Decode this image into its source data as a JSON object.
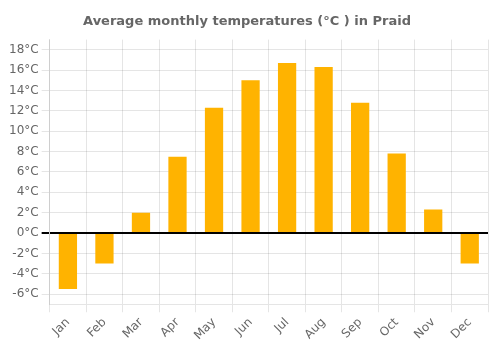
{
  "chart_data": {
    "type": "bar",
    "title": "Average monthly temperatures (°C ) in Praid",
    "categories": [
      "Jan",
      "Feb",
      "Mar",
      "Apr",
      "May",
      "Jun",
      "Jul",
      "Aug",
      "Sep",
      "Oct",
      "Nov",
      "Dec"
    ],
    "values": [
      -5.5,
      -3.0,
      2.0,
      7.5,
      12.3,
      15.0,
      16.7,
      16.3,
      12.8,
      7.8,
      2.3,
      -3.0
    ],
    "color": "#FFB300",
    "ylim": [
      -7,
      19
    ],
    "yticks": [
      {
        "value": -6,
        "label": "-6°C"
      },
      {
        "value": -4,
        "label": "-4°C"
      },
      {
        "value": -2,
        "label": "-2°C"
      },
      {
        "value": 0,
        "label": "0°C"
      },
      {
        "value": 2,
        "label": "2°C"
      },
      {
        "value": 4,
        "label": "4°C"
      },
      {
        "value": 6,
        "label": "6°C"
      },
      {
        "value": 8,
        "label": "8°C"
      },
      {
        "value": 10,
        "label": "10°C"
      },
      {
        "value": 12,
        "label": "12°C"
      },
      {
        "value": 14,
        "label": "14°C"
      },
      {
        "value": 16,
        "label": "16°C"
      },
      {
        "value": 18,
        "label": "18°C"
      }
    ],
    "grid": true
  }
}
